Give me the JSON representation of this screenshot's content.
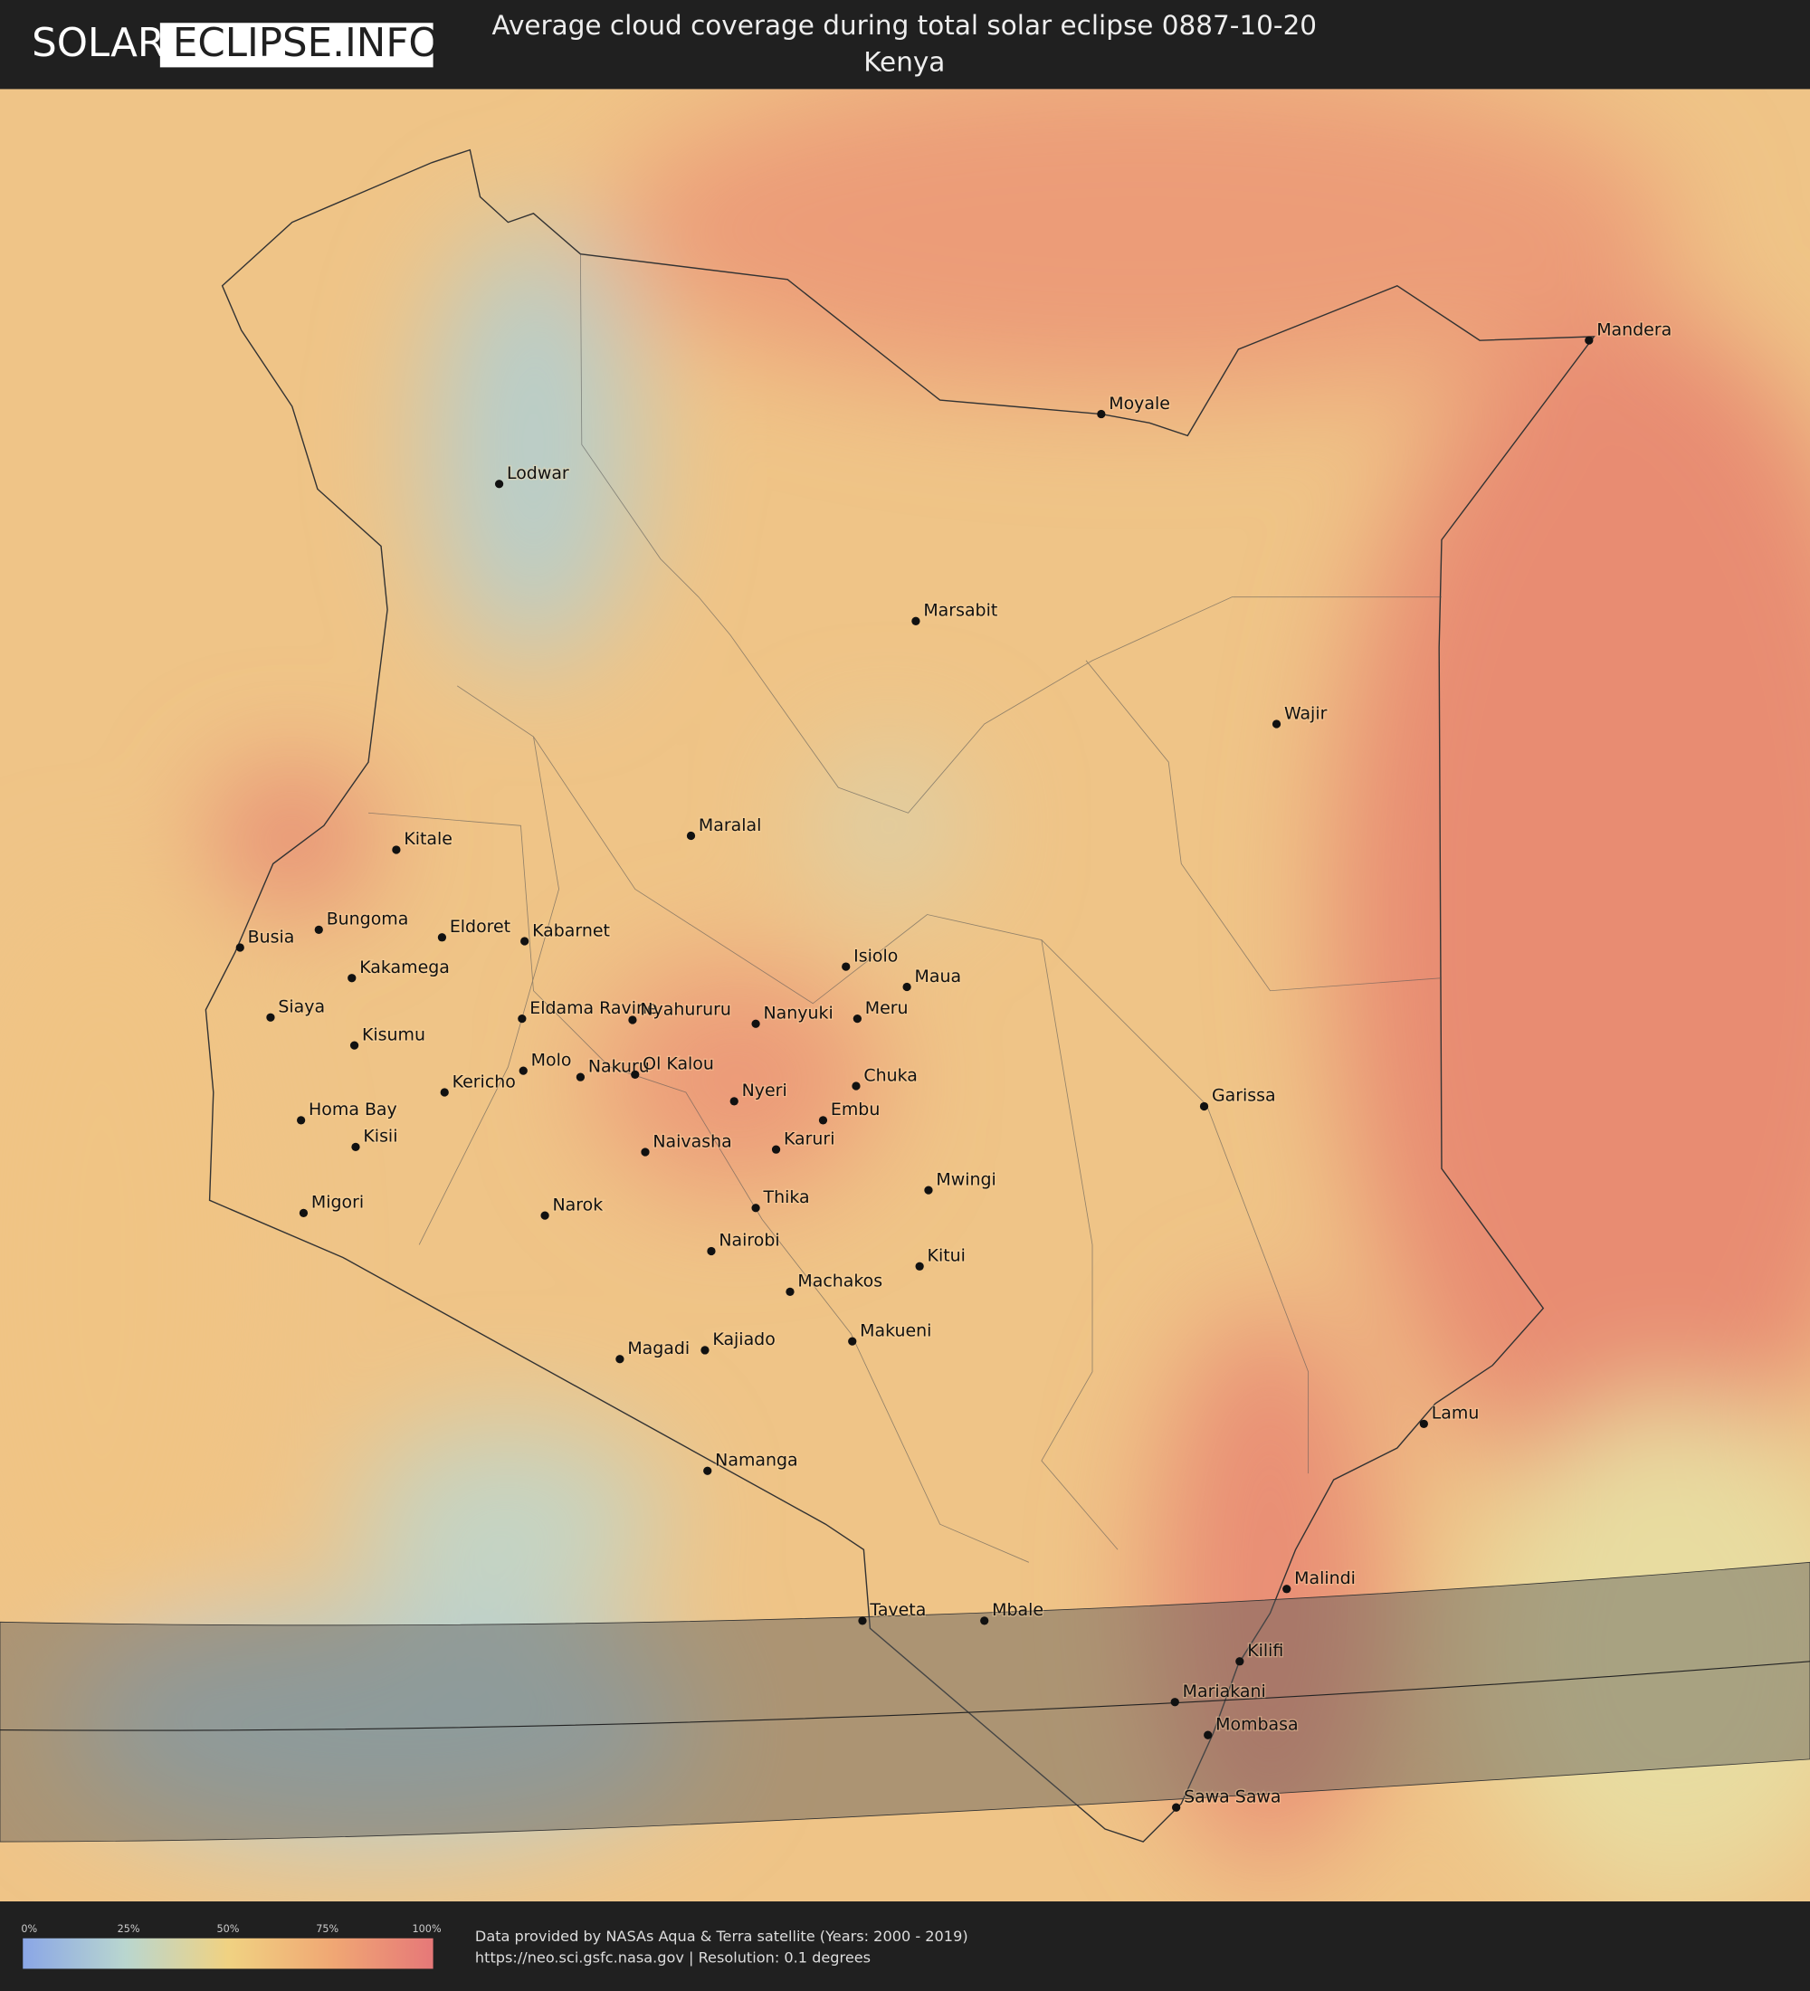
{
  "header": {
    "logo_left": "SOLAR",
    "logo_right": "ECLIPSE.INFO",
    "title": "Average cloud coverage during total solar eclipse 0887-10-20",
    "subtitle": "Kenya"
  },
  "cities": [
    "Mandera",
    "Moyale",
    "Lodwar",
    "Marsabit",
    "Wajir",
    "Maralal",
    "Kitale",
    "Bungoma",
    "Busia",
    "Eldoret",
    "Kabarnet",
    "Kakamega",
    "Isiolo",
    "Maua",
    "Siaya",
    "Eldama Ravine",
    "Nyahururu",
    "Nanyuki",
    "Meru",
    "Kisumu",
    "Molo",
    "Nakuru",
    "Ol Kalou",
    "Chuka",
    "Kericho",
    "Nyeri",
    "Garissa",
    "Homa Bay",
    "Embu",
    "Kisii",
    "Naivasha",
    "Karuri",
    "Mwingi",
    "Thika",
    "Migori",
    "Narok",
    "Nairobi",
    "Kitui",
    "Machakos",
    "Makueni",
    "Magadi",
    "Kajiado",
    "Lamu",
    "Namanga",
    "Malindi",
    "Taveta",
    "Mbale",
    "Kilifi",
    "Mariakani",
    "Mombasa",
    "Sawa Sawa"
  ],
  "legend": {
    "ticks": [
      "0%",
      "25%",
      "50%",
      "75%",
      "100%"
    ]
  },
  "footer": {
    "source": "Data provided by NASAs Aqua & Terra satellite (Years: 2000 - 2019)",
    "details": "https://neo.sci.gsfc.nasa.gov | Resolution: 0.1 degrees"
  }
}
